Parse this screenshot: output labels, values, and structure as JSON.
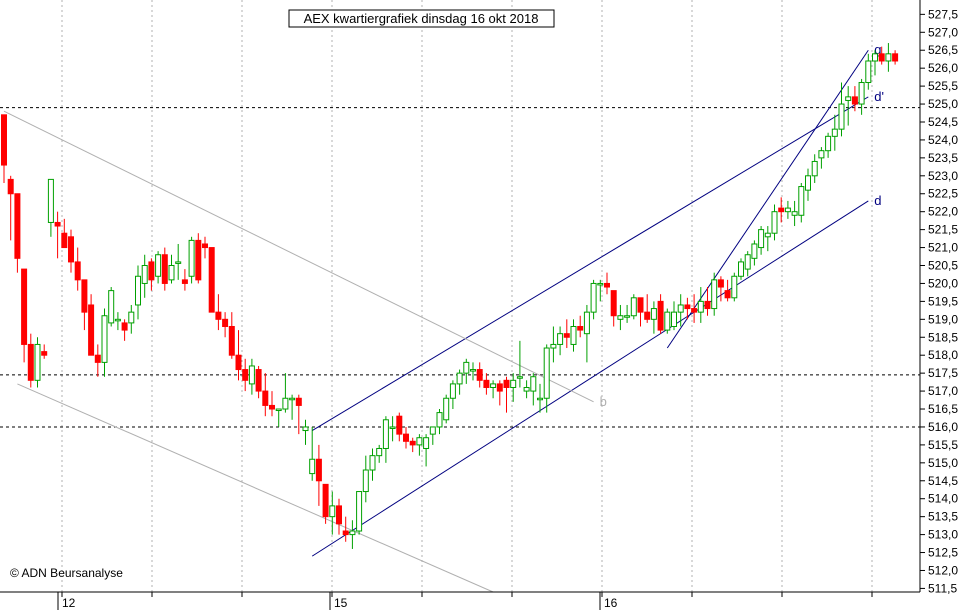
{
  "chart_data": {
    "type": "candlestick",
    "title": "AEX kwartiergrafiek dinsdag 16 okt 2018",
    "copyright": "© ADN Beursanalyse",
    "ylim": [
      511.4,
      527.9
    ],
    "y_ticks": [
      511.5,
      512.0,
      512.5,
      513.0,
      513.5,
      514.0,
      514.5,
      515.0,
      515.5,
      516.0,
      516.5,
      517.0,
      517.5,
      518.0,
      518.5,
      519.0,
      519.5,
      520.0,
      520.5,
      521.0,
      521.5,
      522.0,
      522.5,
      523.0,
      523.5,
      524.0,
      524.5,
      525.0,
      525.5,
      526.0,
      526.5,
      527.0,
      527.5
    ],
    "y_tick_labels": [
      "511,5",
      "512,0",
      "512,5",
      "513,0",
      "513,5",
      "514,0",
      "514,5",
      "515,0",
      "515,5",
      "516,0",
      "516,5",
      "517,0",
      "517,5",
      "518,0",
      "518,5",
      "519,0",
      "519,5",
      "520,0",
      "520,5",
      "521,0",
      "521,5",
      "522,0",
      "522,5",
      "523,0",
      "523,5",
      "524,0",
      "524,5",
      "525,0",
      "525,5",
      "526,0",
      "526,5",
      "527,0",
      "527,5"
    ],
    "x_day_labels": [
      {
        "label": "12",
        "bar": 8
      },
      {
        "label": "15",
        "bar": 47
      },
      {
        "label": "16",
        "bar": 86
      }
    ],
    "horizontal_levels": [
      524.9,
      517.45,
      516.0
    ],
    "colors": {
      "up": "#00a000",
      "down": "#ff0000",
      "trend": "#000080",
      "channel_old": "#b0b0b0",
      "grid": "#b0b0b0",
      "level": "#000000"
    },
    "candles": [
      [
        524.7,
        524.7,
        522.8,
        523.3
      ],
      [
        522.9,
        523.0,
        521.2,
        522.5
      ],
      [
        522.5,
        522.5,
        520.3,
        520.7
      ],
      [
        520.4,
        520.4,
        517.8,
        518.3
      ],
      [
        518.3,
        518.6,
        517.1,
        517.3
      ],
      [
        517.3,
        518.5,
        517.1,
        518.3
      ],
      [
        518.1,
        518.3,
        517.9,
        518.0
      ],
      [
        521.7,
        522.9,
        521.3,
        522.9
      ],
      [
        521.7,
        522.0,
        520.7,
        521.6
      ],
      [
        521.4,
        521.8,
        521.0,
        521.0
      ],
      [
        521.3,
        521.5,
        520.3,
        520.6
      ],
      [
        520.6,
        521.0,
        519.8,
        520.1
      ],
      [
        520.1,
        520.1,
        518.7,
        519.2
      ],
      [
        519.4,
        519.7,
        518.0,
        518.0
      ],
      [
        518.0,
        518.3,
        517.4,
        517.8
      ],
      [
        517.8,
        519.3,
        517.4,
        519.1
      ],
      [
        518.9,
        519.9,
        518.8,
        519.8
      ],
      [
        519.0,
        519.2,
        518.7,
        519.0
      ],
      [
        518.9,
        519.0,
        518.4,
        518.7
      ],
      [
        518.9,
        519.4,
        518.6,
        519.2
      ],
      [
        519.4,
        520.5,
        519.0,
        520.2
      ],
      [
        520.0,
        520.8,
        519.6,
        520.5
      ],
      [
        520.6,
        520.7,
        519.8,
        520.1
      ],
      [
        520.2,
        520.9,
        520.0,
        520.8
      ],
      [
        520.8,
        521.0,
        519.8,
        520.0
      ],
      [
        520.1,
        520.8,
        520.0,
        520.5
      ],
      [
        520.6,
        521.1,
        520.1,
        520.6
      ],
      [
        520.1,
        520.4,
        519.8,
        520.0
      ],
      [
        520.2,
        521.3,
        520.0,
        521.2
      ],
      [
        521.2,
        521.4,
        520.0,
        520.1
      ],
      [
        521.1,
        521.3,
        520.7,
        521.0
      ],
      [
        521.0,
        521.0,
        519.2,
        519.2
      ],
      [
        519.2,
        519.7,
        518.7,
        519.0
      ],
      [
        519.0,
        519.2,
        518.5,
        518.8
      ],
      [
        518.8,
        519.2,
        517.9,
        518.0
      ],
      [
        518.0,
        518.7,
        517.3,
        517.6
      ],
      [
        517.6,
        517.9,
        517.0,
        517.3
      ],
      [
        517.2,
        517.9,
        516.9,
        517.7
      ],
      [
        517.6,
        517.7,
        516.8,
        517.0
      ],
      [
        517.0,
        517.5,
        516.3,
        516.6
      ],
      [
        516.6,
        517.0,
        516.3,
        516.5
      ],
      [
        516.5,
        516.5,
        516.0,
        516.5
      ],
      [
        516.5,
        517.5,
        516.4,
        516.8
      ],
      [
        516.8,
        516.9,
        516.2,
        516.8
      ],
      [
        516.8,
        516.9,
        515.8,
        516.6
      ],
      [
        515.9,
        516.2,
        515.5,
        516.0
      ],
      [
        514.7,
        516.0,
        514.5,
        515.1
      ],
      [
        515.1,
        515.5,
        513.8,
        514.5
      ],
      [
        514.4,
        514.4,
        513.3,
        513.5
      ],
      [
        513.5,
        514.2,
        513.0,
        513.8
      ],
      [
        513.8,
        514.0,
        513.0,
        513.3
      ],
      [
        513.1,
        513.5,
        512.8,
        513.0
      ],
      [
        513.0,
        513.4,
        512.6,
        513.1
      ],
      [
        513.1,
        514.2,
        513.0,
        514.2
      ],
      [
        514.2,
        515.2,
        513.9,
        514.8
      ],
      [
        514.8,
        515.4,
        514.5,
        515.2
      ],
      [
        515.2,
        515.5,
        515.0,
        515.4
      ],
      [
        515.4,
        516.3,
        515.0,
        516.2
      ],
      [
        516.0,
        516.3,
        515.6,
        516.0
      ],
      [
        516.3,
        516.4,
        515.6,
        515.8
      ],
      [
        515.8,
        516.0,
        515.4,
        515.6
      ],
      [
        515.6,
        515.7,
        515.3,
        515.5
      ],
      [
        515.5,
        515.8,
        515.2,
        515.7
      ],
      [
        515.4,
        515.8,
        514.9,
        515.7
      ],
      [
        515.8,
        516.0,
        515.5,
        516.0
      ],
      [
        516.0,
        516.5,
        515.8,
        516.4
      ],
      [
        516.2,
        516.9,
        516.1,
        516.8
      ],
      [
        516.8,
        517.3,
        516.5,
        517.2
      ],
      [
        517.2,
        517.6,
        516.9,
        517.5
      ],
      [
        517.5,
        517.9,
        517.2,
        517.8
      ],
      [
        517.6,
        517.8,
        517.3,
        517.6
      ],
      [
        517.6,
        517.8,
        517.1,
        517.3
      ],
      [
        517.3,
        517.5,
        516.9,
        517.1
      ],
      [
        517.1,
        517.3,
        516.8,
        517.2
      ],
      [
        517.2,
        517.3,
        516.6,
        517.0
      ],
      [
        517.3,
        517.4,
        516.4,
        517.1
      ],
      [
        517.1,
        517.5,
        516.7,
        517.3
      ],
      [
        517.4,
        518.4,
        517.1,
        517.4
      ],
      [
        517.0,
        517.3,
        516.8,
        517.1
      ],
      [
        517.0,
        517.5,
        516.6,
        517.4
      ],
      [
        516.8,
        517.2,
        516.4,
        516.8
      ],
      [
        516.8,
        518.3,
        516.4,
        518.2
      ],
      [
        518.2,
        518.8,
        517.8,
        518.3
      ],
      [
        518.3,
        518.8,
        518.0,
        518.6
      ],
      [
        518.6,
        519.0,
        518.2,
        518.5
      ],
      [
        518.3,
        519.0,
        518.1,
        518.8
      ],
      [
        518.8,
        519.1,
        518.5,
        518.7
      ],
      [
        518.6,
        519.4,
        517.8,
        519.2
      ],
      [
        519.2,
        520.1,
        519.0,
        520.0
      ],
      [
        520.0,
        520.1,
        519.5,
        520.0
      ],
      [
        520.0,
        520.3,
        519.7,
        519.9
      ],
      [
        519.8,
        519.8,
        518.8,
        519.1
      ],
      [
        519.0,
        519.4,
        518.7,
        519.1
      ],
      [
        519.1,
        519.4,
        518.9,
        519.1
      ],
      [
        519.1,
        519.7,
        519.0,
        519.6
      ],
      [
        519.6,
        519.6,
        518.8,
        519.2
      ],
      [
        519.2,
        519.7,
        518.9,
        519.0
      ],
      [
        519.0,
        519.5,
        518.6,
        519.3
      ],
      [
        519.5,
        519.7,
        518.6,
        518.7
      ],
      [
        518.7,
        519.3,
        518.6,
        519.2
      ],
      [
        518.8,
        519.5,
        518.7,
        519.2
      ],
      [
        519.2,
        519.7,
        518.8,
        519.4
      ],
      [
        519.4,
        519.6,
        519.0,
        519.3
      ],
      [
        519.3,
        519.7,
        518.9,
        519.2
      ],
      [
        519.2,
        519.9,
        518.9,
        519.5
      ],
      [
        519.5,
        519.9,
        519.1,
        519.3
      ],
      [
        519.3,
        520.3,
        519.1,
        520.1
      ],
      [
        520.1,
        520.2,
        519.5,
        519.9
      ],
      [
        519.8,
        520.1,
        519.5,
        519.6
      ],
      [
        519.6,
        520.3,
        519.5,
        520.2
      ],
      [
        520.2,
        520.7,
        520.1,
        520.6
      ],
      [
        520.4,
        520.9,
        520.2,
        520.8
      ],
      [
        520.7,
        521.2,
        520.5,
        521.1
      ],
      [
        521.0,
        521.6,
        520.8,
        521.5
      ],
      [
        521.3,
        521.6,
        520.9,
        521.4
      ],
      [
        521.4,
        522.2,
        521.2,
        522.0
      ],
      [
        522.1,
        522.4,
        521.7,
        522.0
      ],
      [
        522.0,
        522.3,
        521.8,
        522.1
      ],
      [
        521.9,
        522.3,
        521.6,
        522.0
      ],
      [
        521.9,
        522.8,
        521.7,
        522.7
      ],
      [
        522.6,
        523.2,
        522.3,
        523.0
      ],
      [
        523.0,
        523.6,
        522.8,
        523.4
      ],
      [
        523.5,
        523.8,
        523.2,
        523.7
      ],
      [
        523.7,
        524.2,
        523.5,
        524.1
      ],
      [
        524.1,
        524.7,
        523.7,
        524.3
      ],
      [
        524.3,
        525.6,
        524.1,
        525.0
      ],
      [
        525.1,
        525.5,
        524.4,
        525.2
      ],
      [
        525.2,
        525.5,
        524.8,
        525.0
      ],
      [
        525.0,
        525.7,
        524.7,
        525.6
      ],
      [
        525.6,
        526.4,
        525.4,
        526.2
      ],
      [
        526.2,
        526.5,
        525.8,
        526.4
      ],
      [
        526.4,
        526.6,
        526.1,
        526.2
      ],
      [
        526.2,
        526.7,
        525.9,
        526.4
      ],
      [
        526.4,
        526.5,
        526.1,
        526.2
      ]
    ],
    "trendlines": [
      {
        "label": "g",
        "from": [
          99,
          518.2
        ],
        "to": [
          129,
          526.5
        ]
      },
      {
        "label": "d'",
        "from": [
          46,
          515.9
        ],
        "to": [
          129,
          525.2
        ]
      },
      {
        "label": "d",
        "from": [
          46,
          512.4
        ],
        "to": [
          129,
          522.3
        ]
      },
      {
        "label": "b",
        "from": [
          0,
          524.8
        ],
        "to": [
          88,
          516.7
        ]
      },
      {
        "label": "",
        "from": [
          2,
          517.2
        ],
        "to": [
          73,
          511.4
        ]
      }
    ]
  }
}
